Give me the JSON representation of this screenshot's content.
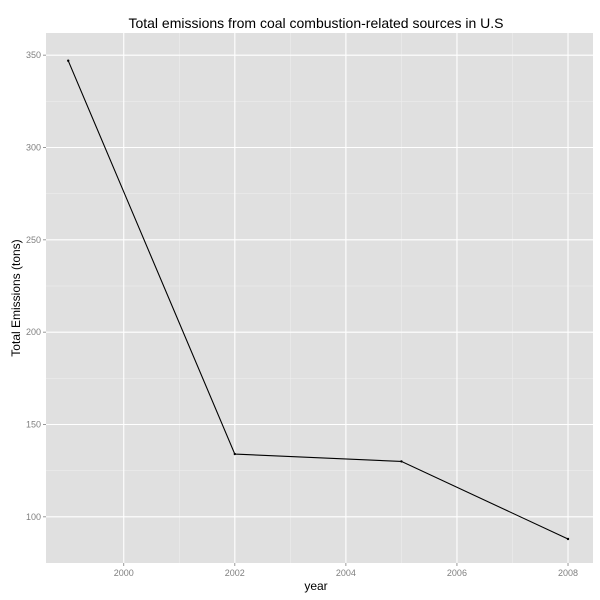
{
  "chart_data": {
    "type": "line",
    "title": "Total emissions from coal combustion-related sources in U.S",
    "xlabel": "year",
    "ylabel": "Total Emissions (tons)",
    "x": [
      1999,
      2002,
      2005,
      2008
    ],
    "series": [
      {
        "values": [
          347,
          134,
          130,
          88
        ]
      }
    ],
    "xlim": [
      1998.6,
      2008.45
    ],
    "ylim": [
      75,
      362
    ],
    "xticks": [
      2000,
      2002,
      2004,
      2006,
      2008
    ],
    "xtick_labels": [
      "2000",
      "2002",
      "2004",
      "2006",
      "2008"
    ],
    "yticks": [
      100,
      150,
      200,
      250,
      300,
      350
    ],
    "ytick_labels": [
      "100",
      "150",
      "200",
      "250",
      "300",
      "350"
    ],
    "grid": true,
    "colors": {
      "panel": "#e0e0e0",
      "grid_major": "#ffffff",
      "grid_minor": "#ededed",
      "line": "#000000"
    }
  }
}
